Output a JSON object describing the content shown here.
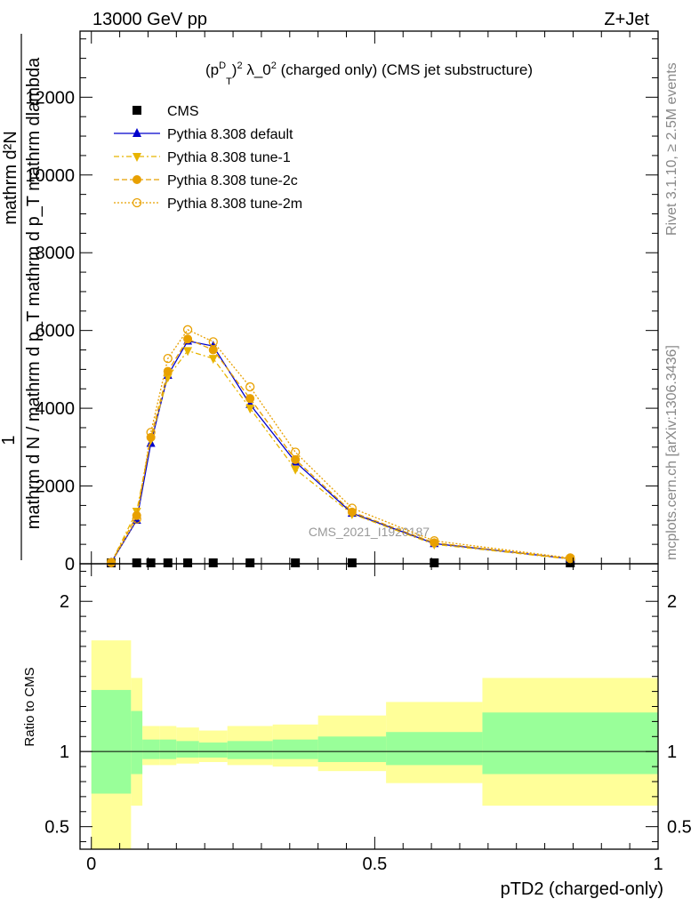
{
  "header": {
    "left": "13000 GeV pp",
    "right": "Z+Jet"
  },
  "side_labels": {
    "rivet": "Rivet 3.1.10, ≥ 2.5M events",
    "mcplots": "mcplots.cern.ch [arXiv:1306.3436]"
  },
  "chart_data": {
    "type": "line",
    "title": "(p_T^D)^2 λ_0^2 (charged only) (CMS jet substructure)",
    "watermark": "CMS_2021_I1920187",
    "ylabel_main": {
      "numerator": "1",
      "denominator": "mathrm d N / mathrm d p_T mathrm d p_T mathrm dlambda",
      "upper": "mathrm d²N"
    },
    "ylabel_ratio": "Ratio to CMS",
    "xlabel": "pTD2 (charged-only)",
    "xlim": [
      -0.02,
      1.0
    ],
    "ylim_main": [
      0,
      13700
    ],
    "ylim_ratio": [
      0.35,
      2.25
    ],
    "yticks_main": [
      0,
      2000,
      4000,
      6000,
      8000,
      10000,
      12000
    ],
    "yticks_main_labels": [
      "0",
      "2000",
      "4000",
      "6000",
      "8000",
      "10000",
      "12000"
    ],
    "yticks_ratio": [
      0.5,
      1,
      2
    ],
    "yticks_ratio_labels": [
      "0.5",
      "1",
      "2"
    ],
    "xticks": [
      0,
      0.5,
      1
    ],
    "xticks_labels": [
      "0",
      "0.5",
      "1"
    ],
    "bin_edges": [
      0.0,
      0.07,
      0.09,
      0.12,
      0.15,
      0.19,
      0.24,
      0.32,
      0.4,
      0.52,
      0.69,
      1.0
    ],
    "x": [
      0.035,
      0.08,
      0.105,
      0.135,
      0.17,
      0.215,
      0.28,
      0.36,
      0.46,
      0.605,
      0.845
    ],
    "series": [
      {
        "name": "CMS",
        "color": "#000000",
        "marker": "square",
        "values": [
          0,
          0,
          0,
          0,
          0,
          0,
          0,
          0,
          0,
          0,
          0
        ]
      },
      {
        "name": "Pythia 8.308 default",
        "color": "#0000cc",
        "marker": "triangle-up",
        "line": "solid",
        "values": [
          30,
          1120,
          3100,
          4850,
          5730,
          5600,
          4100,
          2620,
          1300,
          520,
          130
        ]
      },
      {
        "name": "Pythia 8.308 tune-1",
        "color": "#e8b400",
        "marker": "triangle-down",
        "line": "dashdot",
        "values": [
          30,
          1350,
          3200,
          4800,
          5480,
          5280,
          4000,
          2430,
          1280,
          500,
          120
        ]
      },
      {
        "name": "Pythia 8.308 tune-2c",
        "color": "#e8a000",
        "marker": "circle",
        "line": "dashed",
        "values": [
          30,
          1240,
          3250,
          4950,
          5780,
          5500,
          4250,
          2680,
          1330,
          540,
          130
        ]
      },
      {
        "name": "Pythia 8.308 tune-2m",
        "color": "#e8a000",
        "marker": "circle-open",
        "line": "dotted",
        "values": [
          30,
          1150,
          3380,
          5280,
          6020,
          5710,
          4550,
          2870,
          1430,
          590,
          150
        ]
      }
    ],
    "ratio_bands": {
      "stat_color": "#99ff99",
      "total_color": "#ffff99",
      "inner_lo": [
        0.72,
        0.85,
        0.95,
        0.95,
        0.96,
        0.96,
        0.95,
        0.95,
        0.93,
        0.91,
        0.85
      ],
      "inner_hi": [
        1.41,
        1.27,
        1.08,
        1.08,
        1.07,
        1.06,
        1.07,
        1.08,
        1.1,
        1.13,
        1.26
      ],
      "outer_lo": [
        0.35,
        0.64,
        0.91,
        0.91,
        0.92,
        0.93,
        0.91,
        0.9,
        0.87,
        0.79,
        0.64
      ],
      "outer_hi": [
        1.74,
        1.49,
        1.17,
        1.17,
        1.16,
        1.14,
        1.17,
        1.18,
        1.24,
        1.33,
        1.49
      ]
    }
  }
}
